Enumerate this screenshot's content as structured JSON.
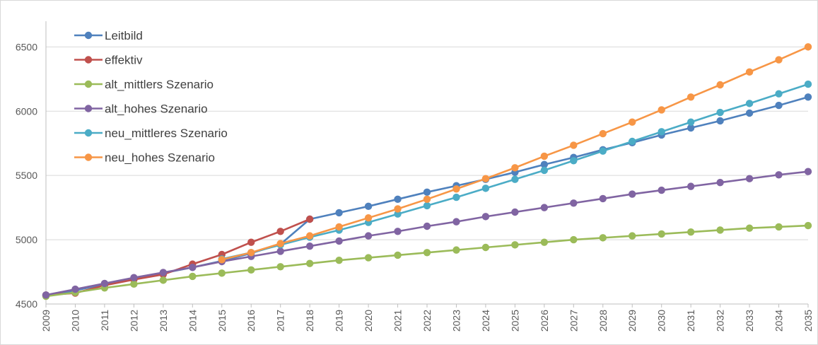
{
  "chart_data": {
    "type": "line",
    "title": "",
    "xlabel": "",
    "ylabel": "",
    "x": [
      2009,
      2010,
      2011,
      2012,
      2013,
      2014,
      2015,
      2016,
      2017,
      2018,
      2019,
      2020,
      2021,
      2022,
      2023,
      2024,
      2025,
      2026,
      2027,
      2028,
      2029,
      2030,
      2031,
      2032,
      2033,
      2034,
      2035
    ],
    "ylim": [
      4500,
      6700
    ],
    "yticks": [
      4500,
      5000,
      5500,
      6000,
      6500
    ],
    "grid": "horizontal",
    "legend_position": "top-left",
    "series": [
      {
        "name": "Leitbild",
        "color": "#4f81bd",
        "values": [
          4565,
          4605,
          4655,
          4700,
          4740,
          4785,
          4835,
          4895,
          4965,
          5160,
          5210,
          5260,
          5315,
          5370,
          5420,
          5470,
          5525,
          5585,
          5640,
          5700,
          5755,
          5815,
          5870,
          5925,
          5985,
          6045,
          6110
        ]
      },
      {
        "name": "effektiv",
        "color": "#c0504d",
        "values": [
          4570,
          4585,
          4645,
          4690,
          4730,
          4810,
          4885,
          4980,
          5065,
          5160,
          null,
          null,
          null,
          null,
          null,
          null,
          null,
          null,
          null,
          null,
          null,
          null,
          null,
          null,
          null,
          null,
          null
        ]
      },
      {
        "name": "alt_mittlers Szenario",
        "color": "#9bbb59",
        "values": [
          4560,
          4590,
          4625,
          4655,
          4685,
          4715,
          4740,
          4765,
          4790,
          4815,
          4840,
          4860,
          4880,
          4900,
          4920,
          4940,
          4960,
          4980,
          5000,
          5015,
          5030,
          5045,
          5060,
          5075,
          5090,
          5100,
          5110
        ]
      },
      {
        "name": "alt_hohes Szenario",
        "color": "#8064a2",
        "values": [
          4570,
          4615,
          4660,
          4705,
          4745,
          4785,
          4830,
          4870,
          4910,
          4950,
          4990,
          5030,
          5065,
          5105,
          5140,
          5180,
          5215,
          5250,
          5285,
          5320,
          5355,
          5385,
          5415,
          5445,
          5475,
          5505,
          5530
        ]
      },
      {
        "name": "neu_mittleres Szenario",
        "color": "#4bacc6",
        "values": [
          null,
          null,
          null,
          null,
          null,
          null,
          4850,
          4900,
          4960,
          5020,
          5075,
          5135,
          5200,
          5265,
          5330,
          5400,
          5470,
          5540,
          5615,
          5690,
          5765,
          5840,
          5915,
          5990,
          6060,
          6135,
          6210
        ]
      },
      {
        "name": "neu_hohes Szenario",
        "color": "#f79646",
        "values": [
          null,
          null,
          null,
          null,
          null,
          null,
          4845,
          4900,
          4970,
          5030,
          5100,
          5170,
          5240,
          5315,
          5395,
          5475,
          5560,
          5650,
          5735,
          5825,
          5915,
          6010,
          6110,
          6205,
          6305,
          6400,
          6500
        ]
      }
    ]
  }
}
